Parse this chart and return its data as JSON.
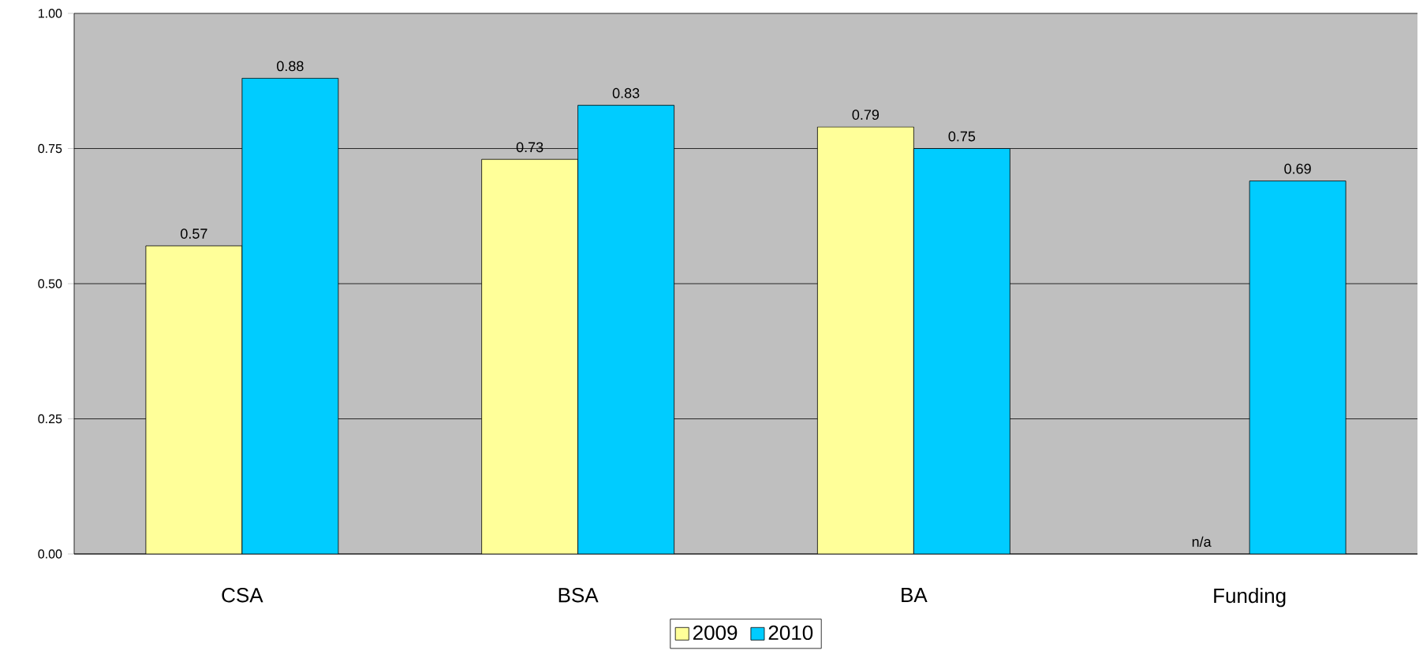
{
  "chart_data": {
    "type": "bar",
    "categories": [
      "CSA",
      "BSA",
      "BA",
      "Funding"
    ],
    "series": [
      {
        "name": "2009",
        "color": "#ffff99",
        "values": [
          0.57,
          0.73,
          0.79,
          null
        ],
        "value_labels": [
          "0.57",
          "0.73",
          "0.79",
          "n/a"
        ]
      },
      {
        "name": "2010",
        "color": "#00ccff",
        "values": [
          0.88,
          0.83,
          0.75,
          0.69
        ],
        "value_labels": [
          "0.88",
          "0.83",
          "0.75",
          "0.69"
        ]
      }
    ],
    "ylim": [
      0,
      1
    ],
    "yticks": [
      {
        "value": 0,
        "label": "0.00"
      },
      {
        "value": 0.25,
        "label": "0.25"
      },
      {
        "value": 0.5,
        "label": "0.50"
      },
      {
        "value": 0.75,
        "label": "0.75"
      },
      {
        "value": 1,
        "label": "1.00"
      }
    ],
    "grid": "y",
    "legend": "bottom"
  }
}
